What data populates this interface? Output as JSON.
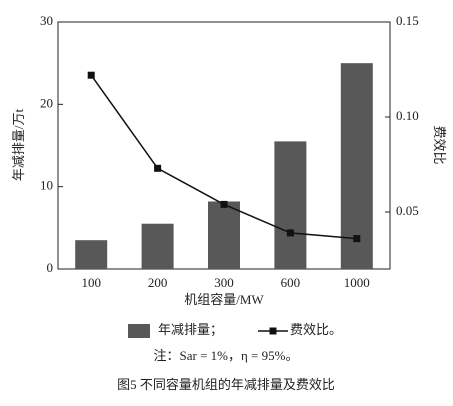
{
  "chart_data": {
    "type": "bar_line",
    "caption": "图5   不同容量机组的年减排量及费效比",
    "note": "注：Sar = 1%，η = 95%。",
    "xlabel": "机组容量/MW",
    "ylabel": "年减排量/万t",
    "y2label": "费效比",
    "categories": [
      "100",
      "200",
      "300",
      "600",
      "1000"
    ],
    "series": [
      {
        "name": "年减排量；",
        "type": "bar",
        "color": "#585858",
        "values": [
          3.5,
          5.5,
          8.2,
          15.5,
          25
        ]
      },
      {
        "name": "费效比。",
        "type": "line",
        "axis": "y2",
        "color": "#111111",
        "values": [
          0.122,
          0.073,
          0.054,
          0.039,
          0.036
        ]
      }
    ],
    "ylim": [
      0,
      30
    ],
    "yticks": [
      0,
      10,
      20,
      30
    ],
    "y2lim": [
      0.02,
      0.15
    ],
    "y2ticks": [
      0.05,
      {
        "value": 0.1,
        "label": "0.10"
      },
      0.15
    ]
  }
}
